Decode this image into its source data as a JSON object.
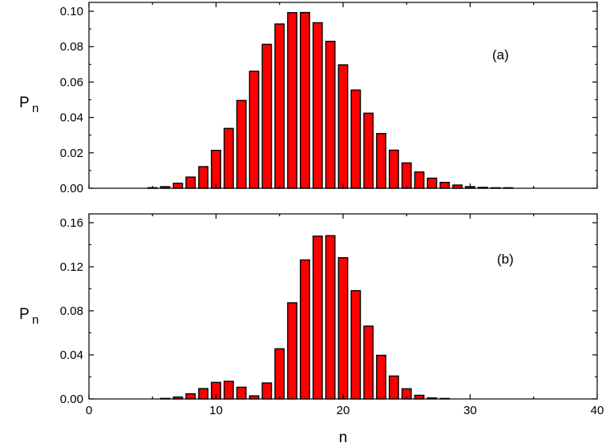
{
  "chart_data": [
    {
      "type": "bar",
      "panel_label": "(a)",
      "ylabel_main": "P",
      "ylabel_sub": "n",
      "xlabel": "",
      "xlim": [
        0,
        40
      ],
      "ylim": [
        0,
        0.105
      ],
      "y_ticks": [
        "0.00",
        "0.02",
        "0.04",
        "0.06",
        "0.08",
        "0.10"
      ],
      "y_tick_values": [
        0,
        0.02,
        0.04,
        0.06,
        0.08,
        0.1
      ],
      "x_ticks": [],
      "bar_color": "#ff0000",
      "bar_edge_color": "#000000",
      "x": [
        5,
        6,
        7,
        8,
        9,
        10,
        11,
        12,
        13,
        14,
        15,
        16,
        17,
        18,
        19,
        20,
        21,
        22,
        23,
        24,
        25,
        26,
        27,
        28,
        29,
        30,
        31,
        32,
        33
      ],
      "values": [
        0.0003,
        0.0009,
        0.0028,
        0.0063,
        0.0122,
        0.0214,
        0.0338,
        0.0496,
        0.0661,
        0.0813,
        0.0928,
        0.0992,
        0.0993,
        0.0935,
        0.083,
        0.0697,
        0.0555,
        0.0424,
        0.0309,
        0.0215,
        0.0143,
        0.0092,
        0.0057,
        0.0033,
        0.0018,
        0.0009,
        0.0005,
        0.0002,
        0.0001
      ],
      "grid": false
    },
    {
      "type": "bar",
      "panel_label": "(b)",
      "ylabel_main": "P",
      "ylabel_sub": "n",
      "xlabel": "n",
      "xlim": [
        0,
        40
      ],
      "ylim": [
        0,
        0.168
      ],
      "y_ticks": [
        "0.00",
        "0.04",
        "0.08",
        "0.12",
        "0.16"
      ],
      "y_tick_values": [
        0,
        0.04,
        0.08,
        0.12,
        0.16
      ],
      "x_ticks": [
        "0",
        "10",
        "20",
        "30",
        "40"
      ],
      "x_tick_values": [
        0,
        10,
        20,
        30,
        40
      ],
      "bar_color": "#ff0000",
      "bar_edge_color": "#000000",
      "x": [
        6,
        7,
        8,
        9,
        10,
        11,
        12,
        13,
        14,
        15,
        16,
        17,
        18,
        19,
        20,
        21,
        22,
        23,
        24,
        25,
        26,
        27,
        28
      ],
      "values": [
        0.0005,
        0.0017,
        0.0047,
        0.0094,
        0.015,
        0.016,
        0.0106,
        0.0028,
        0.0145,
        0.0455,
        0.0873,
        0.1262,
        0.1478,
        0.1482,
        0.1282,
        0.0983,
        0.0661,
        0.0396,
        0.0208,
        0.0092,
        0.0033,
        0.0009,
        0.0002
      ],
      "grid": false
    }
  ]
}
